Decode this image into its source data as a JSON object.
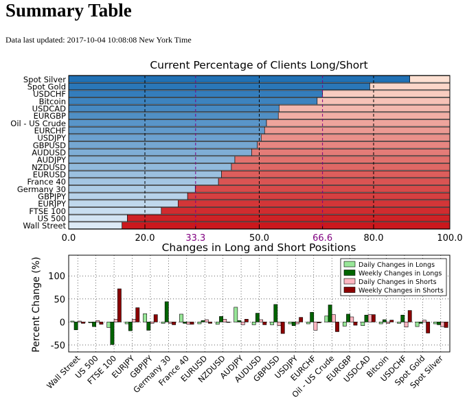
{
  "page": {
    "title": "Summary Table",
    "updated": "Data last updated: 2017-10-04 10:08:08 New York Time"
  },
  "chart_data": [
    {
      "type": "bar",
      "orientation": "horizontal-stacked",
      "title": "Current Percentage of Clients Long/Short",
      "categories": [
        "Spot Silver",
        "Spot Gold",
        "USDCHF",
        "Bitcoin",
        "USDCAD",
        "EURGBP",
        "Oil - US Crude",
        "EURCHF",
        "USDJPY",
        "GBPUSD",
        "AUDUSD",
        "AUDJPY",
        "NZDUSD",
        "EURUSD",
        "France 40",
        "Germany 30",
        "GBPJPY",
        "EURJPY",
        "FTSE 100",
        "US 500",
        "Wall Street"
      ],
      "long_pct": [
        89.5,
        79.0,
        66.6,
        65.2,
        55.2,
        55.0,
        51.9,
        51.4,
        50.5,
        49.5,
        48.0,
        43.6,
        42.7,
        40.1,
        39.3,
        33.2,
        31.2,
        28.7,
        24.3,
        15.4,
        14.0
      ],
      "xlim": [
        0,
        100
      ],
      "xticks": [
        0.0,
        20.0,
        33.3,
        50.0,
        66.6,
        80.0,
        100.0
      ],
      "highlight_ticks": [
        33.3,
        66.6
      ],
      "grid": true,
      "colors": {
        "long": "#2171b5",
        "short": "#cb181d",
        "highlight": "#800080"
      }
    },
    {
      "type": "bar",
      "title": "Changes in Long and Short Positions",
      "ylabel": "Percent Change (%)",
      "ylim": [
        -65,
        145
      ],
      "yticks": [
        -50,
        0,
        50,
        100
      ],
      "grid": true,
      "legend": "top-right",
      "categories": [
        "Wall Street",
        "US 500",
        "FTSE 100",
        "EURJPY",
        "GBPJPY",
        "Germany 30",
        "France 40",
        "EURUSD",
        "NZDUSD",
        "AUDJPY",
        "AUDUSD",
        "GBPUSD",
        "USDJPY",
        "EURCHF",
        "Oil - US Crude",
        "EURGBP",
        "USDCAD",
        "Bitcoin",
        "USDCHF",
        "Spot Gold",
        "Spot Silver"
      ],
      "series": [
        {
          "name": "Daily Changes in Longs",
          "color": "#98e698",
          "values": [
            2,
            -2,
            -12,
            -4,
            18,
            -3,
            17,
            -4,
            -5,
            32,
            -6,
            -6,
            -4,
            -4,
            13,
            -9,
            -8,
            -4,
            -3,
            -10,
            -4
          ]
        },
        {
          "name": "Weekly Changes in Longs",
          "color": "#006400",
          "values": [
            -17,
            -10,
            -49,
            -19,
            -18,
            44,
            -3,
            3,
            12,
            3,
            19,
            38,
            -8,
            21,
            37,
            17,
            15,
            5,
            15,
            -3,
            -6
          ]
        },
        {
          "name": "Daily Changes in Shorts",
          "color": "#ffb6c1",
          "values": [
            2,
            3,
            6,
            6,
            -3,
            -3,
            -5,
            5,
            6,
            -6,
            5,
            -8,
            -4,
            -18,
            16,
            11,
            16,
            -3,
            -11,
            4,
            -10
          ]
        },
        {
          "name": "Weekly Changes in Shorts",
          "color": "#8b0000",
          "values": [
            -3,
            -5,
            72,
            31,
            16,
            -6,
            -5,
            -3,
            -1,
            6,
            -6,
            -25,
            10,
            -2,
            -21,
            -7,
            16,
            4,
            25,
            -24,
            -12
          ]
        }
      ]
    }
  ]
}
